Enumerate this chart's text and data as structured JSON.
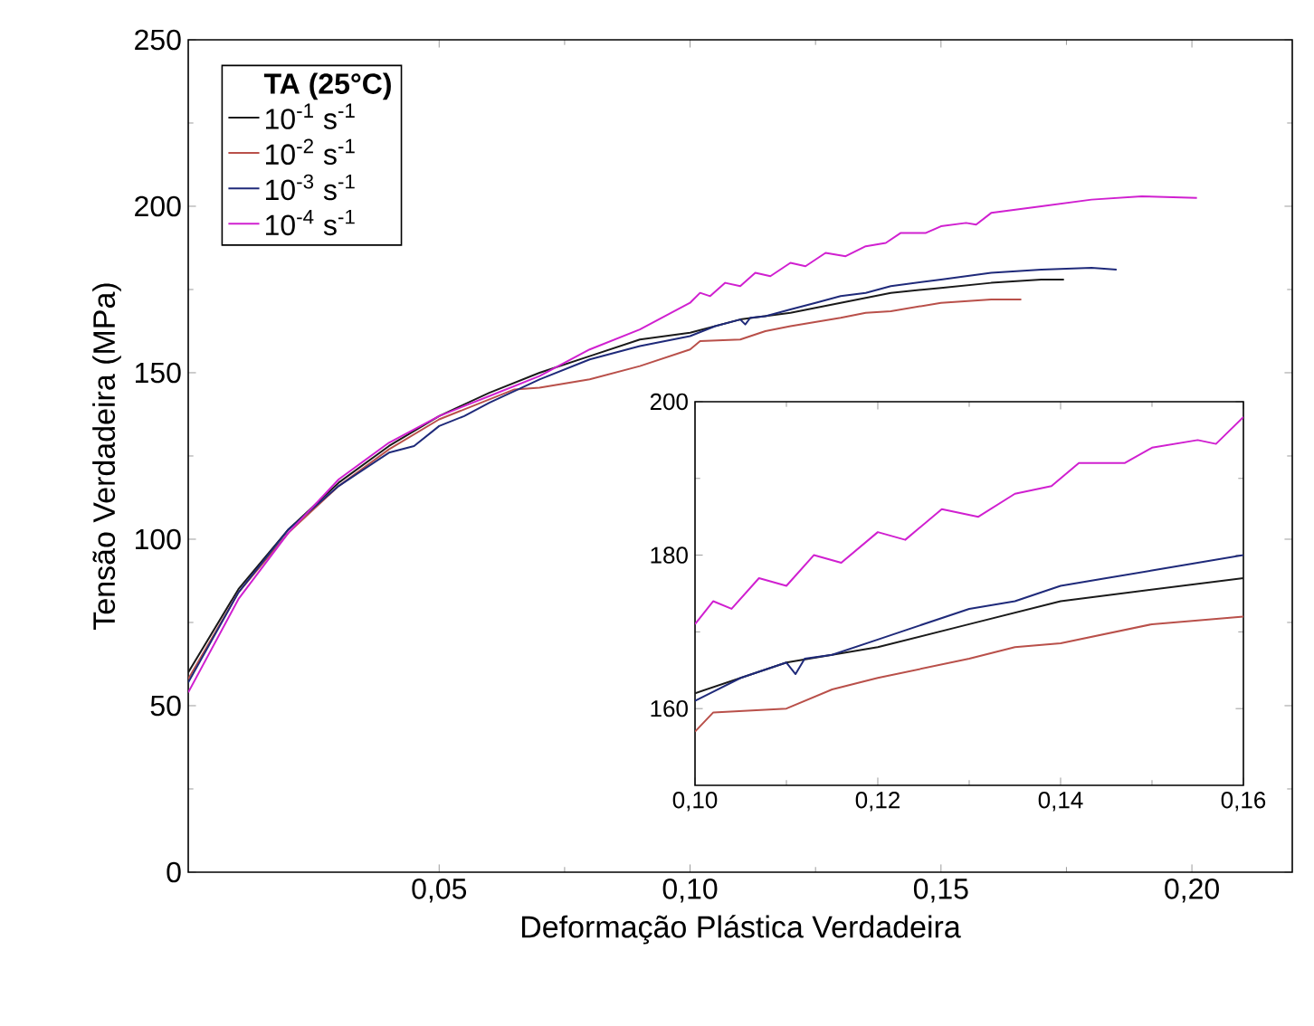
{
  "chart_data": [
    {
      "type": "line",
      "xlabel": "Deformação Plástica Verdadeira",
      "ylabel": "Tensão Verdadeira (MPa)",
      "legend_title": "TA (25°C)",
      "legend": "top left",
      "xlim": [
        0,
        0.22
      ],
      "ylim": [
        0,
        250
      ],
      "xticks": [
        {
          "value": 0.05,
          "label": "0,05"
        },
        {
          "value": 0.1,
          "label": "0,10"
        },
        {
          "value": 0.15,
          "label": "0,15"
        },
        {
          "value": 0.2,
          "label": "0,20"
        }
      ],
      "yticks": [
        0,
        50,
        100,
        150,
        200,
        250
      ],
      "series": [
        {
          "name": "10$^{-1}$ s$^{-1}$",
          "color": "#1a1a1a",
          "x": [
            0,
            0.01,
            0.02,
            0.03,
            0.04,
            0.05,
            0.06,
            0.07,
            0.08,
            0.09,
            0.1,
            0.11,
            0.12,
            0.13,
            0.14,
            0.15,
            0.16,
            0.17,
            0.1745
          ],
          "values": [
            60,
            85,
            103,
            117,
            128,
            137,
            144,
            150,
            155,
            160,
            162,
            166,
            168,
            171,
            174,
            175.5,
            177,
            178,
            178
          ]
        },
        {
          "name": "10$^{-2}$ s$^{-1}$",
          "color": "#b9504a",
          "x": [
            0,
            0.01,
            0.02,
            0.03,
            0.04,
            0.05,
            0.06,
            0.065,
            0.07,
            0.08,
            0.09,
            0.1,
            0.102,
            0.11,
            0.115,
            0.12,
            0.13,
            0.135,
            0.14,
            0.15,
            0.16,
            0.166
          ],
          "values": [
            58,
            84,
            102,
            116,
            127,
            136,
            142,
            145,
            145.5,
            148,
            152,
            157,
            159.5,
            160,
            162.5,
            164,
            166.5,
            168,
            168.5,
            171,
            172,
            172
          ]
        },
        {
          "name": "10$^{-3}$ s$^{-1}$",
          "color": "#1f2a7a",
          "x": [
            0,
            0.01,
            0.02,
            0.03,
            0.04,
            0.045,
            0.05,
            0.055,
            0.06,
            0.07,
            0.08,
            0.09,
            0.1,
            0.105,
            0.11,
            0.111,
            0.112,
            0.115,
            0.12,
            0.125,
            0.13,
            0.135,
            0.14,
            0.145,
            0.15,
            0.155,
            0.16,
            0.17,
            0.18,
            0.185
          ],
          "values": [
            57,
            84,
            103,
            116,
            126,
            128,
            134,
            137,
            141,
            148,
            154,
            158,
            161,
            164,
            166,
            164.5,
            166.5,
            167,
            169,
            171,
            173,
            174,
            176,
            177,
            178,
            179,
            180,
            181,
            181.5,
            181
          ]
        },
        {
          "name": "10$^{-4}$ s$^{-1}$",
          "color": "#d020d0",
          "x": [
            0,
            0.01,
            0.02,
            0.03,
            0.04,
            0.05,
            0.06,
            0.07,
            0.08,
            0.09,
            0.1,
            0.102,
            0.104,
            0.107,
            0.11,
            0.113,
            0.116,
            0.12,
            0.123,
            0.127,
            0.131,
            0.135,
            0.139,
            0.142,
            0.147,
            0.15,
            0.155,
            0.157,
            0.16,
            0.17,
            0.18,
            0.19,
            0.201
          ],
          "values": [
            54,
            82,
            102,
            118,
            129,
            137,
            143,
            149,
            157,
            163,
            171,
            174,
            173,
            177,
            176,
            180,
            179,
            183,
            182,
            186,
            185,
            188,
            189,
            192,
            192,
            194,
            195,
            194.5,
            198,
            200,
            202,
            203,
            202.5
          ]
        }
      ]
    },
    {
      "type": "line",
      "xlim": [
        0.1,
        0.16
      ],
      "ylim": [
        150,
        200
      ],
      "xticks": [
        {
          "value": 0.1,
          "label": "0,10"
        },
        {
          "value": 0.12,
          "label": "0,12"
        },
        {
          "value": 0.14,
          "label": "0,14"
        },
        {
          "value": 0.16,
          "label": "0,16"
        }
      ],
      "yticks": [
        160,
        180,
        200
      ],
      "series": [
        {
          "color": "#1a1a1a",
          "x": [
            0.1,
            0.11,
            0.12,
            0.13,
            0.14,
            0.15,
            0.16
          ],
          "values": [
            162,
            166,
            168,
            171,
            174,
            175.5,
            177
          ]
        },
        {
          "color": "#b9504a",
          "x": [
            0.1,
            0.102,
            0.11,
            0.115,
            0.12,
            0.13,
            0.135,
            0.14,
            0.15,
            0.16
          ],
          "values": [
            157,
            159.5,
            160,
            162.5,
            164,
            166.5,
            168,
            168.5,
            171,
            172
          ]
        },
        {
          "color": "#1f2a7a",
          "x": [
            0.1,
            0.105,
            0.11,
            0.111,
            0.112,
            0.115,
            0.12,
            0.125,
            0.13,
            0.135,
            0.14,
            0.145,
            0.15,
            0.155,
            0.16
          ],
          "values": [
            161,
            164,
            166,
            164.5,
            166.5,
            167,
            169,
            171,
            173,
            174,
            176,
            177,
            178,
            179,
            180
          ]
        },
        {
          "color": "#d020d0",
          "x": [
            0.1,
            0.102,
            0.104,
            0.107,
            0.11,
            0.113,
            0.116,
            0.12,
            0.123,
            0.127,
            0.131,
            0.135,
            0.139,
            0.142,
            0.147,
            0.15,
            0.155,
            0.157,
            0.16
          ],
          "values": [
            171,
            174,
            173,
            177,
            176,
            180,
            179,
            183,
            182,
            186,
            185,
            188,
            189,
            192,
            192,
            194,
            195,
            194.5,
            198
          ]
        }
      ]
    }
  ]
}
